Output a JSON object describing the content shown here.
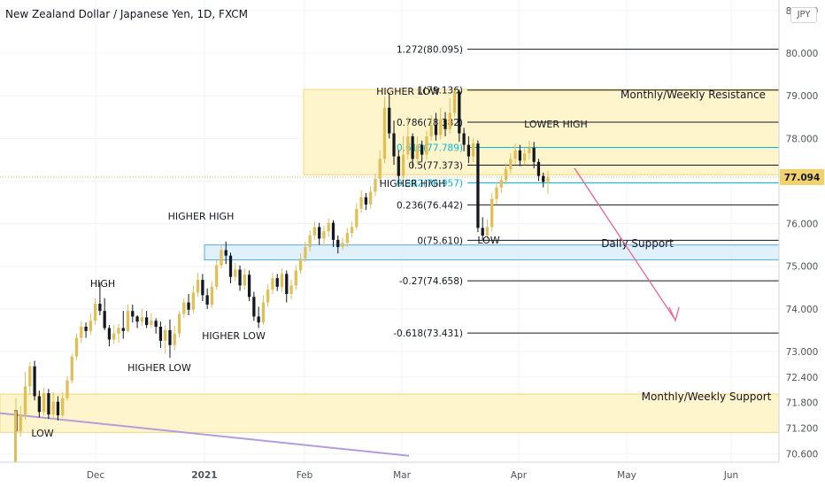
{
  "header": {
    "title": "New Zealand Dollar / Japanese Yen, 1D, FXCM",
    "currency": "JPY"
  },
  "chart_data": {
    "type": "candlestick",
    "ylim": [
      70.4,
      81.25
    ],
    "y_ticks": [
      "81.000",
      "80.000",
      "79.000",
      "78.000",
      "77.000",
      "76.000",
      "75.000",
      "74.000",
      "73.000",
      "72.400",
      "71.800",
      "71.200",
      "70.600"
    ],
    "x_ticks": [
      "Dec",
      "2021",
      "Feb",
      "Mar",
      "Apr",
      "May",
      "Jun"
    ],
    "current_price": "77.094",
    "fib_levels": [
      {
        "label": "1.272(80.095)",
        "value": 80.095,
        "color": "#131722"
      },
      {
        "label": "1(79.136)",
        "value": 79.136,
        "color": "#131722"
      },
      {
        "label": "0.786(78.382)",
        "value": 78.382,
        "color": "#131722"
      },
      {
        "label": "0.618(77.789)",
        "value": 77.789,
        "color": "#00bcd4"
      },
      {
        "label": "0.5(77.373)",
        "value": 77.373,
        "color": "#131722"
      },
      {
        "label": "0.382(76.957)",
        "value": 76.957,
        "color": "#00bcd4"
      },
      {
        "label": "0.236(76.442)",
        "value": 76.442,
        "color": "#131722"
      },
      {
        "label": "0(75.610)",
        "value": 75.61,
        "color": "#131722"
      },
      {
        "label": "-0.27(74.658)",
        "value": 74.658,
        "color": "#131722"
      },
      {
        "label": "-0.618(73.431)",
        "value": 73.431,
        "color": "#131722"
      }
    ],
    "zones": [
      {
        "label": "Monthly/Weekly Resistance",
        "low": 77.15,
        "high": 79.15,
        "color": "#fff3c4"
      },
      {
        "label": "Daily Support",
        "low": 75.15,
        "high": 75.5,
        "color": "#dbeefa"
      },
      {
        "label": "Monthly/Weekly Support",
        "low": 71.1,
        "high": 72.0,
        "color": "#fff3c4"
      }
    ],
    "annotations": [
      "LOW",
      "HIGH",
      "HIGHER LOW",
      "HIGHER HIGH",
      "HIGHER LOW",
      "HIGHER LOW",
      "HIGHER HIGH",
      "LOW",
      "LOWER HIGH"
    ],
    "candles": [
      [
        71.62,
        71.12,
        71.88,
        70.95
      ],
      [
        71.12,
        71.52,
        71.72,
        71.0
      ],
      [
        71.52,
        72.18,
        72.52,
        71.4
      ],
      [
        72.18,
        72.65,
        72.75,
        71.98
      ],
      [
        72.65,
        71.95,
        72.78,
        71.85
      ],
      [
        71.95,
        71.58,
        72.08,
        71.45
      ],
      [
        71.58,
        72.02,
        72.15,
        71.5
      ],
      [
        72.02,
        71.52,
        72.12,
        71.42
      ],
      [
        71.52,
        71.82,
        72.05,
        71.4
      ],
      [
        71.82,
        71.5,
        71.95,
        71.38
      ],
      [
        71.5,
        71.9,
        72.05,
        71.45
      ],
      [
        71.9,
        72.32,
        72.42,
        71.85
      ],
      [
        72.32,
        72.88,
        72.95,
        72.25
      ],
      [
        72.88,
        73.32,
        73.42,
        72.8
      ],
      [
        73.32,
        73.58,
        73.72,
        73.2
      ],
      [
        73.58,
        73.48,
        73.68,
        73.32
      ],
      [
        73.48,
        73.72,
        73.9,
        73.38
      ],
      [
        73.72,
        74.12,
        74.25,
        73.62
      ],
      [
        74.12,
        73.95,
        74.62,
        73.85
      ],
      [
        73.95,
        73.55,
        74.25,
        73.5
      ],
      [
        73.55,
        73.28,
        73.62,
        73.12
      ],
      [
        73.28,
        73.42,
        73.62,
        73.18
      ],
      [
        73.42,
        73.55,
        73.65,
        73.2
      ],
      [
        73.55,
        73.48,
        73.95,
        73.3
      ],
      [
        73.48,
        73.95,
        74.1,
        73.45
      ],
      [
        73.95,
        73.82,
        74.1,
        73.68
      ],
      [
        73.82,
        73.7,
        73.85,
        73.55
      ],
      [
        73.7,
        73.8,
        74.0,
        73.6
      ],
      [
        73.8,
        73.62,
        73.95,
        73.55
      ],
      [
        73.62,
        73.72,
        73.9,
        73.55
      ],
      [
        73.72,
        73.58,
        73.78,
        73.42
      ],
      [
        73.58,
        73.25,
        73.7,
        73.08
      ],
      [
        73.25,
        73.5,
        73.62,
        72.95
      ],
      [
        73.5,
        73.15,
        73.75,
        72.85
      ],
      [
        73.15,
        73.42,
        73.6,
        73.02
      ],
      [
        73.42,
        73.88,
        73.95,
        73.32
      ],
      [
        73.88,
        74.15,
        74.25,
        73.78
      ],
      [
        74.15,
        73.98,
        74.35,
        73.85
      ],
      [
        73.98,
        74.38,
        74.55,
        73.9
      ],
      [
        74.38,
        74.68,
        74.85,
        74.28
      ],
      [
        74.68,
        74.32,
        74.82,
        74.18
      ],
      [
        74.32,
        74.1,
        74.48,
        74.0
      ],
      [
        74.1,
        74.52,
        74.65,
        74.02
      ],
      [
        74.52,
        75.02,
        75.15,
        74.45
      ],
      [
        75.02,
        75.38,
        75.5,
        74.95
      ],
      [
        75.38,
        75.25,
        75.58,
        75.05
      ],
      [
        75.25,
        74.75,
        75.32,
        74.6
      ],
      [
        74.75,
        74.92,
        75.08,
        74.65
      ],
      [
        74.92,
        74.55,
        75.02,
        74.42
      ],
      [
        74.55,
        74.8,
        74.95,
        74.45
      ],
      [
        74.8,
        74.28,
        74.9,
        74.18
      ],
      [
        74.28,
        73.82,
        74.4,
        73.72
      ],
      [
        73.82,
        73.68,
        74.05,
        73.55
      ],
      [
        73.68,
        74.15,
        74.32,
        73.62
      ],
      [
        74.15,
        74.45,
        74.58,
        74.05
      ],
      [
        74.45,
        74.72,
        74.85,
        74.35
      ],
      [
        74.72,
        74.52,
        74.82,
        74.42
      ],
      [
        74.52,
        74.82,
        74.95,
        74.4
      ],
      [
        74.82,
        74.35,
        74.9,
        74.15
      ],
      [
        74.35,
        74.55,
        74.68,
        74.22
      ],
      [
        74.55,
        74.9,
        75.02,
        74.45
      ],
      [
        74.9,
        75.18,
        75.3,
        74.82
      ],
      [
        75.18,
        75.45,
        75.58,
        75.1
      ],
      [
        75.45,
        75.72,
        75.85,
        75.35
      ],
      [
        75.72,
        75.92,
        76.05,
        75.62
      ],
      [
        75.92,
        75.65,
        76.02,
        75.5
      ],
      [
        75.65,
        75.82,
        75.95,
        75.48
      ],
      [
        75.82,
        76.02,
        76.12,
        75.7
      ],
      [
        76.02,
        75.62,
        76.08,
        75.45
      ],
      [
        75.62,
        75.45,
        75.72,
        75.3
      ],
      [
        75.45,
        75.55,
        75.68,
        75.38
      ],
      [
        75.55,
        75.78,
        75.9,
        75.45
      ],
      [
        75.78,
        75.92,
        76.05,
        75.68
      ],
      [
        75.92,
        76.35,
        76.48,
        75.85
      ],
      [
        76.35,
        76.62,
        76.78,
        76.25
      ],
      [
        76.62,
        76.45,
        76.72,
        76.32
      ],
      [
        76.45,
        76.75,
        76.88,
        76.35
      ],
      [
        76.75,
        77.05,
        77.18,
        76.65
      ],
      [
        77.05,
        77.52,
        77.72,
        76.95
      ],
      [
        77.52,
        78.72,
        78.98,
        77.42
      ],
      [
        78.72,
        78.12,
        79.08,
        78.0
      ],
      [
        78.12,
        77.58,
        78.42,
        77.38
      ],
      [
        77.58,
        77.12,
        77.72,
        76.95
      ],
      [
        77.12,
        77.62,
        78.05,
        76.98
      ],
      [
        77.62,
        78.05,
        78.52,
        77.5
      ],
      [
        78.05,
        77.52,
        78.12,
        77.3
      ],
      [
        77.52,
        77.85,
        78.05,
        77.4
      ],
      [
        77.85,
        77.62,
        77.95,
        77.45
      ],
      [
        77.62,
        78.05,
        78.18,
        77.5
      ],
      [
        78.05,
        78.32,
        78.55,
        77.95
      ],
      [
        78.32,
        78.08,
        78.6,
        77.95
      ],
      [
        78.08,
        78.45,
        78.72,
        77.98
      ],
      [
        78.45,
        78.22,
        78.62,
        78.05
      ],
      [
        78.22,
        78.6,
        78.95,
        78.12
      ],
      [
        78.6,
        79.1,
        79.14,
        78.5
      ],
      [
        79.1,
        78.12,
        79.14,
        77.92
      ],
      [
        78.12,
        77.85,
        78.25,
        77.7
      ],
      [
        77.85,
        77.58,
        78.05,
        77.42
      ],
      [
        77.58,
        77.88,
        78.0,
        77.45
      ],
      [
        77.88,
        75.9,
        77.95,
        75.8
      ],
      [
        75.9,
        75.72,
        76.15,
        75.61
      ],
      [
        75.72,
        75.92,
        76.1,
        75.62
      ],
      [
        75.92,
        76.58,
        76.72,
        75.82
      ],
      [
        76.58,
        76.85,
        76.98,
        76.45
      ],
      [
        76.85,
        77.02,
        77.12,
        76.72
      ],
      [
        77.02,
        77.28,
        77.42,
        76.92
      ],
      [
        77.28,
        77.52,
        77.65,
        77.18
      ],
      [
        77.52,
        77.72,
        77.88,
        77.4
      ],
      [
        77.72,
        77.48,
        77.85,
        77.35
      ],
      [
        77.48,
        77.65,
        77.78,
        77.38
      ],
      [
        77.65,
        77.78,
        77.95,
        77.5
      ],
      [
        77.78,
        77.45,
        77.92,
        77.3
      ],
      [
        77.45,
        77.12,
        77.52,
        77.0
      ],
      [
        77.12,
        76.98,
        77.2,
        76.85
      ],
      [
        76.98,
        77.09,
        77.25,
        76.7
      ]
    ]
  }
}
